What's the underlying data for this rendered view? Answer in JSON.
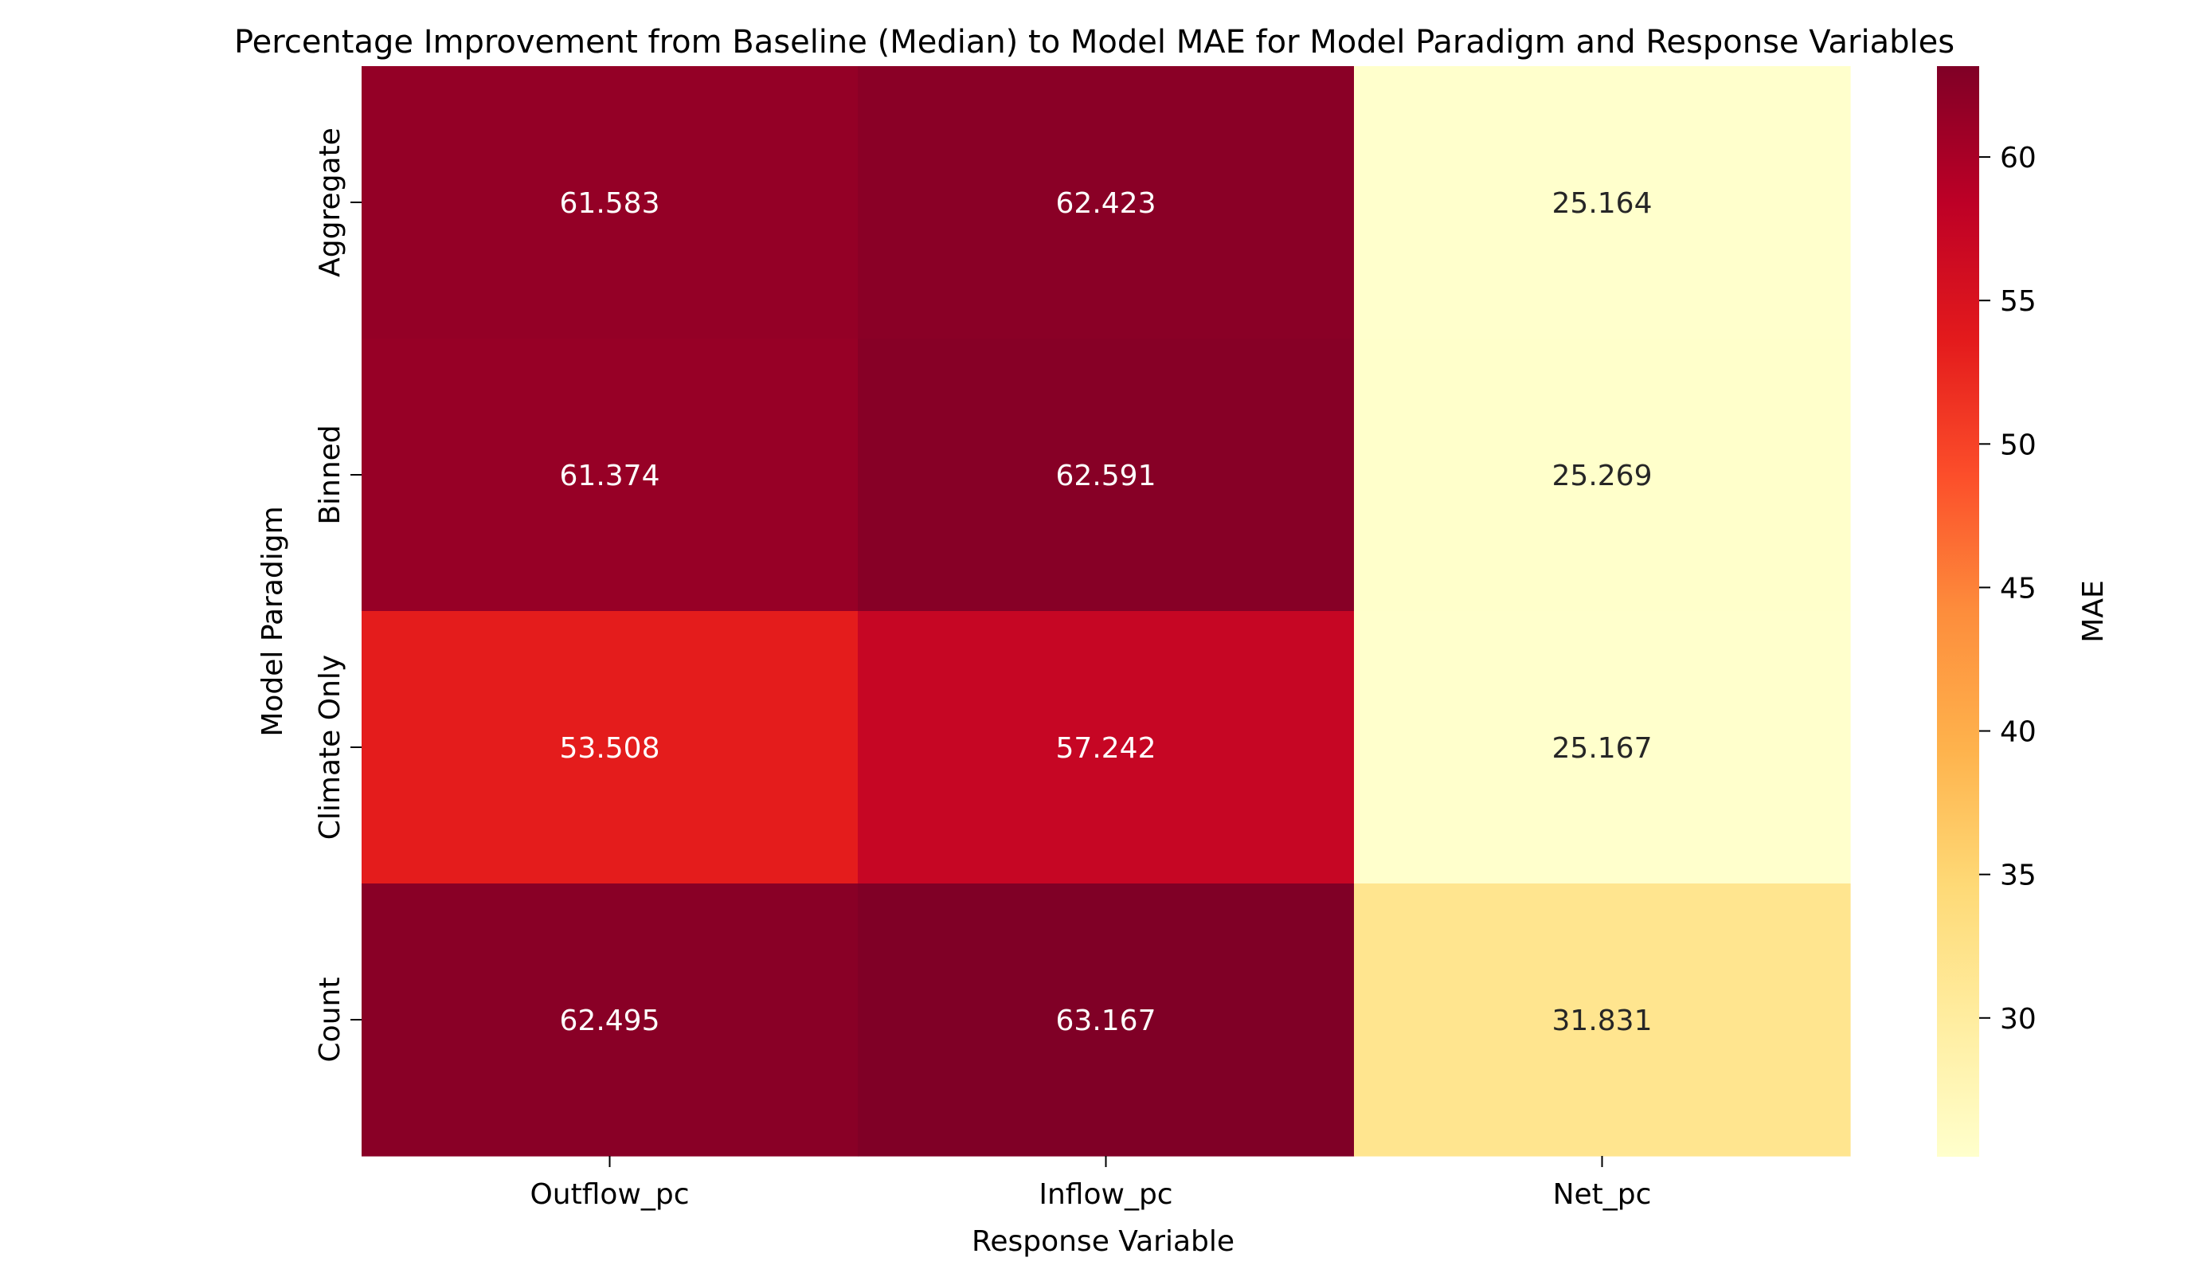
{
  "chart_data": {
    "type": "heatmap",
    "title": "Percentage Improvement from Baseline (Median) to Model MAE for Model Paradigm and Response Variables",
    "xlabel": "Response Variable",
    "ylabel": "Model Paradigm",
    "x_categories": [
      "Outflow_pc",
      "Inflow_pc",
      "Net_pc"
    ],
    "y_categories": [
      "Aggregate",
      "Binned",
      "Climate Only",
      "Count"
    ],
    "values": [
      [
        61.583,
        62.423,
        25.164
      ],
      [
        61.374,
        62.591,
        25.269
      ],
      [
        53.508,
        57.242,
        25.167
      ],
      [
        62.495,
        63.167,
        31.831
      ]
    ],
    "value_labels": [
      [
        "61.583",
        "62.423",
        "25.164"
      ],
      [
        "61.374",
        "62.591",
        "25.269"
      ],
      [
        "53.508",
        "57.242",
        "25.167"
      ],
      [
        "62.495",
        "63.167",
        "31.831"
      ]
    ],
    "colorbar": {
      "label": "MAE",
      "range": [
        25.164,
        63.167
      ],
      "ticks": [
        30,
        35,
        40,
        45,
        50,
        55,
        60
      ],
      "colormap": "YlOrRd",
      "colormap_stops": [
        "#ffffcc",
        "#ffeda0",
        "#fed976",
        "#feb24c",
        "#fd8d3c",
        "#fc4e2a",
        "#e31a1c",
        "#bd0026",
        "#800026"
      ]
    },
    "text_colors": {
      "dark_cell": "#ffffff",
      "light_cell": "#262626"
    }
  }
}
